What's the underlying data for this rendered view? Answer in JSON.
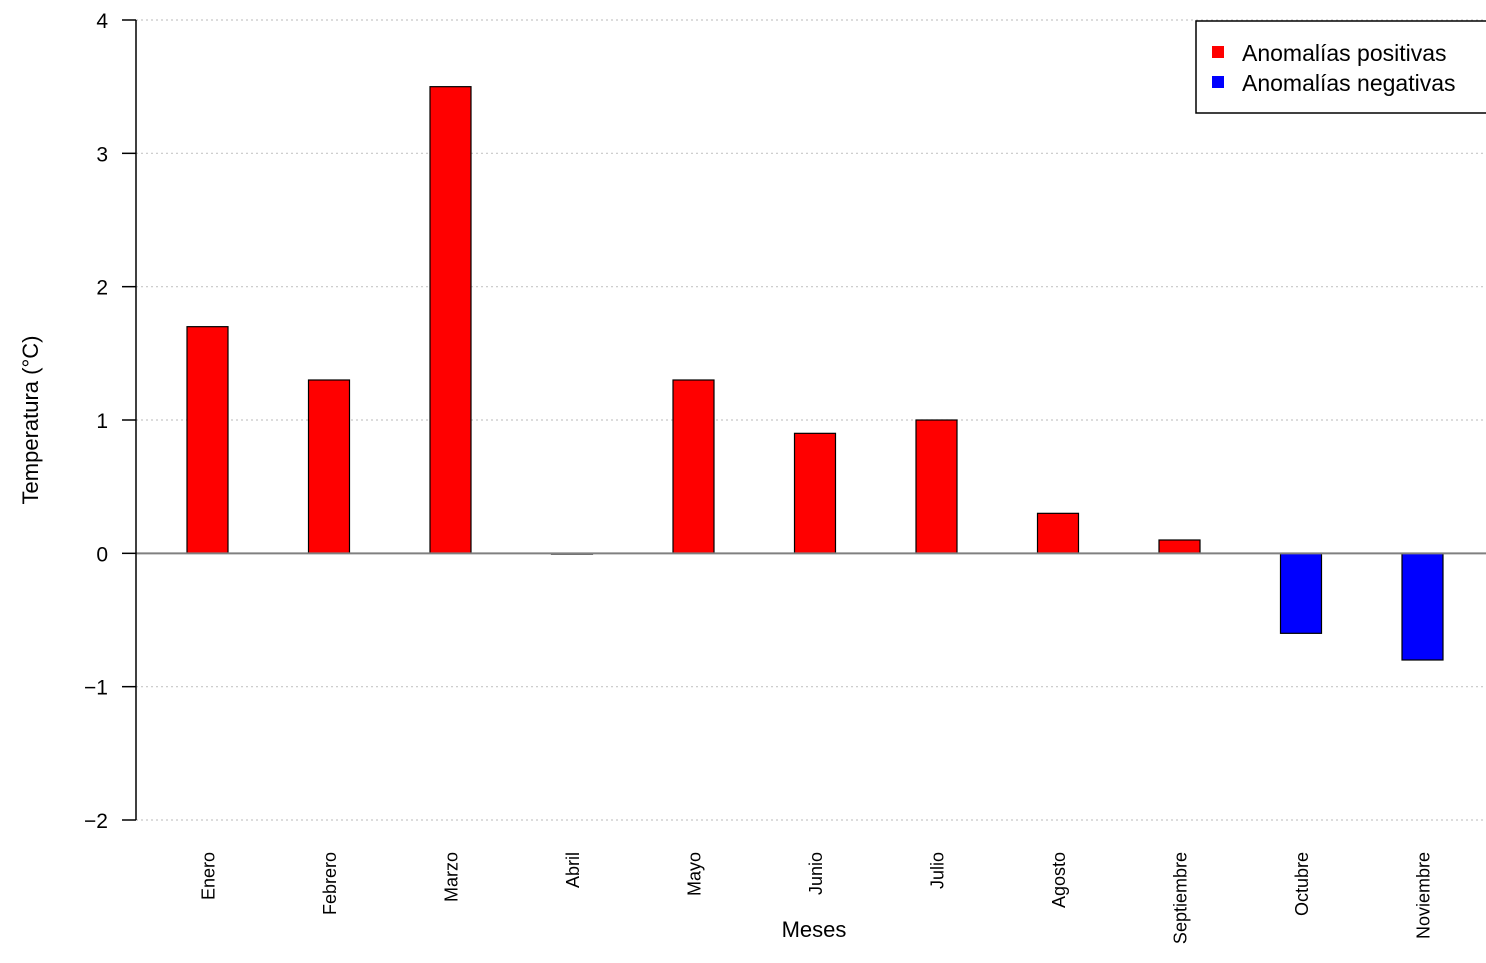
{
  "chart_data": {
    "type": "bar",
    "title": "",
    "xlabel": "Meses",
    "ylabel": "Temperatura (°C)",
    "categories": [
      "Enero",
      "Febrero",
      "Marzo",
      "Abril",
      "Mayo",
      "Junio",
      "Julio",
      "Agosto",
      "Septiembre",
      "Octubre",
      "Noviembre"
    ],
    "values": [
      1.7,
      1.3,
      3.5,
      0.0,
      1.3,
      0.9,
      1.0,
      0.3,
      0.1,
      -0.6,
      -0.8
    ],
    "ylim": [
      -2,
      4
    ],
    "yticks": [
      "−2",
      "−1",
      "0",
      "1",
      "2",
      "3",
      "4"
    ],
    "grid": "horizontal dotted",
    "legend": {
      "placement": "top-right",
      "entries": [
        {
          "label": "Anomalías positivas",
          "color": "#ff0000"
        },
        {
          "label": "Anomalías negativas",
          "color": "#0000ff"
        }
      ]
    },
    "colors": {
      "positive": "#ff0000",
      "negative": "#0000ff"
    }
  }
}
